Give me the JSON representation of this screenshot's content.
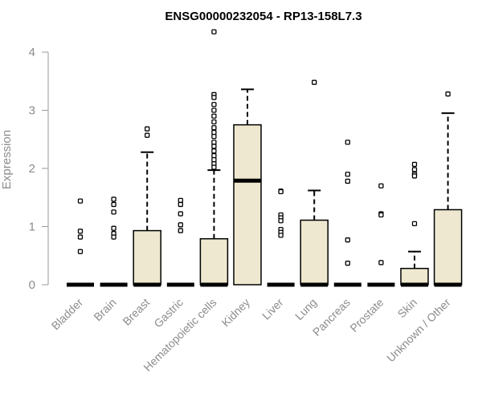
{
  "chart_data": {
    "type": "box",
    "title": "ENSG00000232054 - RP13-158L7.3",
    "ylabel": "Expression",
    "xlabel": "",
    "ylim": [
      0,
      4
    ],
    "yticks": [
      0,
      1,
      2,
      3,
      4
    ],
    "grid": false,
    "legend": "none",
    "box_fill": "#ede8cf",
    "categories": [
      "Bladder",
      "Brain",
      "Breast",
      "Gastric",
      "Hematopoietic cells",
      "Kidney",
      "Liver",
      "Lung",
      "Pancreas",
      "Prostate",
      "Skin",
      "Unknown / Other"
    ],
    "boxes": [
      {
        "q1": 0,
        "median": 0,
        "q3": 0,
        "whisker_low": 0,
        "whisker_high": 0,
        "outliers": [
          1.44,
          0.92,
          0.82,
          0.57
        ]
      },
      {
        "q1": 0,
        "median": 0,
        "q3": 0,
        "whisker_low": 0,
        "whisker_high": 0,
        "outliers": [
          1.47,
          1.38,
          1.25,
          0.97,
          0.88,
          0.82
        ]
      },
      {
        "q1": 0,
        "median": 0,
        "q3": 0.93,
        "whisker_low": 0,
        "whisker_high": 2.28,
        "outliers": [
          2.68,
          2.57
        ]
      },
      {
        "q1": 0,
        "median": 0,
        "q3": 0,
        "whisker_low": 0,
        "whisker_high": 0,
        "outliers": [
          1.45,
          1.38,
          1.22,
          1.03,
          0.93
        ]
      },
      {
        "q1": 0,
        "median": 0,
        "q3": 0.79,
        "whisker_low": 0,
        "whisker_high": 1.97,
        "outliers": [
          4.35,
          3.27,
          3.22,
          3.1,
          3.0,
          2.9,
          2.8,
          2.7,
          2.62,
          2.55,
          2.45,
          2.38,
          2.3,
          2.22,
          2.15,
          2.08,
          2.02
        ]
      },
      {
        "q1": 0,
        "median": 1.79,
        "q3": 2.75,
        "whisker_low": 0,
        "whisker_high": 3.36,
        "outliers": []
      },
      {
        "q1": 0,
        "median": 0,
        "q3": 0,
        "whisker_low": 0,
        "whisker_high": 0,
        "outliers": [
          1.61,
          1.6,
          1.2,
          1.15,
          1.1,
          0.95,
          0.9,
          0.85
        ]
      },
      {
        "q1": 0,
        "median": 0,
        "q3": 1.11,
        "whisker_low": 0,
        "whisker_high": 1.62,
        "outliers": [
          3.48
        ]
      },
      {
        "q1": 0,
        "median": 0,
        "q3": 0,
        "whisker_low": 0,
        "whisker_high": 0,
        "outliers": [
          2.45,
          1.9,
          1.78,
          0.77,
          0.37
        ]
      },
      {
        "q1": 0,
        "median": 0,
        "q3": 0,
        "whisker_low": 0,
        "whisker_high": 0,
        "outliers": [
          1.7,
          1.22,
          1.2,
          0.38
        ]
      },
      {
        "q1": 0,
        "median": 0,
        "q3": 0.28,
        "whisker_low": 0,
        "whisker_high": 0.57,
        "outliers": [
          2.07,
          1.98,
          1.9,
          1.87,
          1.05
        ]
      },
      {
        "q1": 0,
        "median": 0,
        "q3": 1.29,
        "whisker_low": 0,
        "whisker_high": 2.95,
        "outliers": [
          3.28
        ]
      }
    ]
  }
}
